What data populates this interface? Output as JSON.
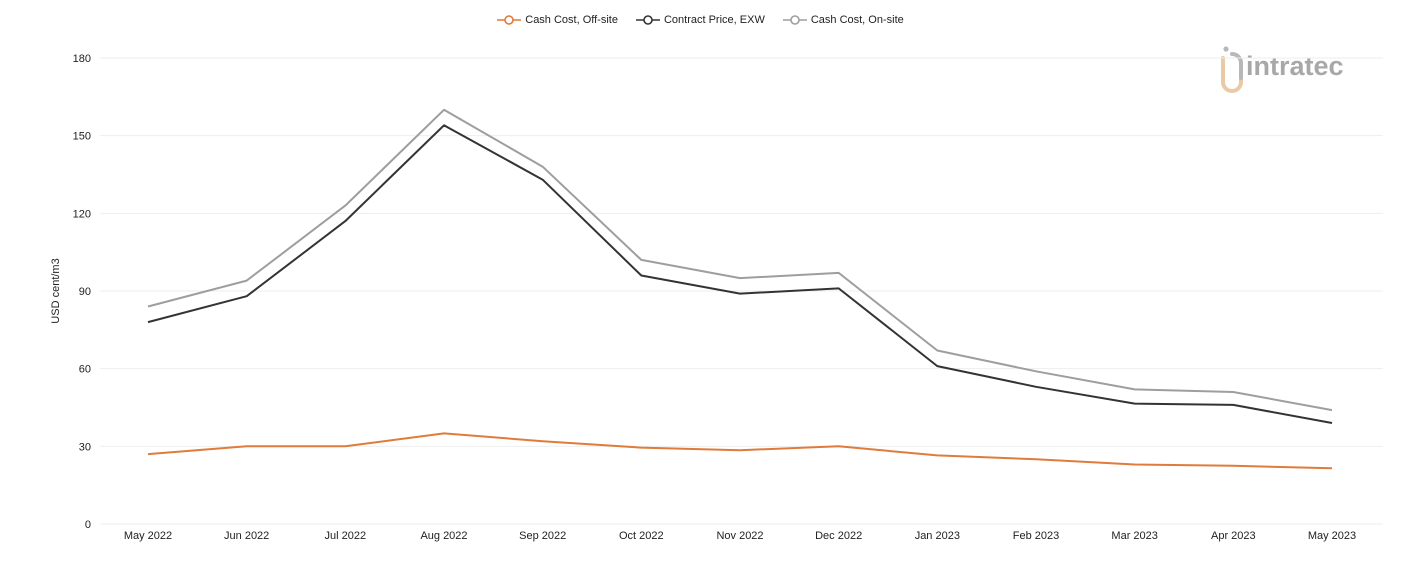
{
  "colors": {
    "cash_cost_off_site": "#e07b39",
    "contract_price_exw": "#333333",
    "cash_cost_on_site": "#9e9e9e",
    "grid": "#eeeeee"
  },
  "logo": {
    "text": "intratec"
  },
  "chart_data": {
    "type": "line",
    "ylabel": "USD cent/m3",
    "ylim": [
      0,
      180
    ],
    "yticks": [
      "0",
      "30",
      "60",
      "90",
      "120",
      "150",
      "180"
    ],
    "grid": true,
    "legend_position": "top-center",
    "categories": [
      "May 2022",
      "Jun 2022",
      "Jul 2022",
      "Aug 2022",
      "Sep 2022",
      "Oct 2022",
      "Nov 2022",
      "Dec 2022",
      "Jan 2023",
      "Feb 2023",
      "Mar 2023",
      "Apr 2023",
      "May 2023"
    ],
    "series": [
      {
        "name": "Cash Cost, Off-site",
        "color": "#e07b39",
        "values": [
          27,
          30,
          30,
          35,
          32,
          29.5,
          28.5,
          30,
          26.5,
          25,
          23,
          22.5,
          21.5
        ]
      },
      {
        "name": "Contract Price, EXW",
        "color": "#333333",
        "values": [
          78,
          88,
          117,
          154,
          133,
          96,
          89,
          91,
          61,
          53,
          46.5,
          46,
          39
        ]
      },
      {
        "name": "Cash Cost, On-site",
        "color": "#9e9e9e",
        "values": [
          84,
          94,
          123,
          160,
          138,
          102,
          95,
          97,
          67,
          59,
          52,
          51,
          44
        ]
      }
    ]
  }
}
